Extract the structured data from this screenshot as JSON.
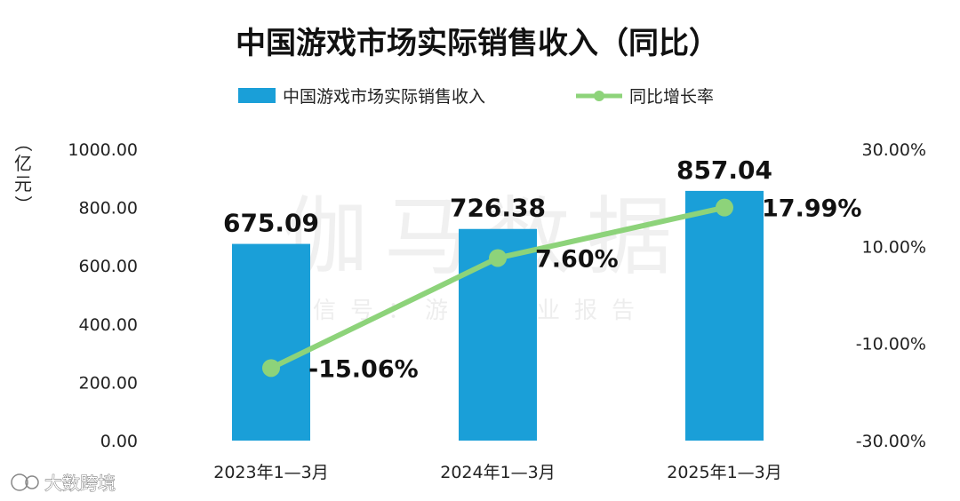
{
  "chart_data": {
    "type": "bar",
    "title": "中国游戏市场实际销售收入（同比）",
    "categories": [
      "2023年1—3月",
      "2024年1—3月",
      "2025年1—3月"
    ],
    "series": [
      {
        "name": "中国游戏市场实际销售收入",
        "type": "bar",
        "axis": "left",
        "color": "#1a9fd8",
        "values": [
          675.09,
          726.38,
          857.04
        ],
        "labels": [
          "675.09",
          "726.38",
          "857.04"
        ]
      },
      {
        "name": "同比增长率",
        "type": "line",
        "axis": "right",
        "color": "#8dd37a",
        "values": [
          -15.06,
          7.6,
          17.99
        ],
        "labels": [
          "-15.06%",
          "7.60%",
          "17.99%"
        ]
      }
    ],
    "ylabel": "（亿元）",
    "ylabel_chars": [
      "（",
      "亿",
      "元",
      "）"
    ],
    "ylim": [
      0,
      1000
    ],
    "y_ticks": [
      "0.00",
      "200.00",
      "400.00",
      "600.00",
      "800.00",
      "1000.00"
    ],
    "y_tick_values": [
      0,
      200,
      400,
      600,
      800,
      1000
    ],
    "y2lim": [
      -30,
      30
    ],
    "y2_ticks": [
      "-30.00%",
      "-10.00%",
      "10.00%",
      "30.00%"
    ],
    "y2_tick_values": [
      -30,
      -10,
      10,
      30
    ],
    "legend_position": "top-center",
    "grid": false
  },
  "watermark": {
    "main": "伽马数据",
    "sub": "微信号：游戏产业报告"
  },
  "source_mark": {
    "text": "大数跨境"
  }
}
